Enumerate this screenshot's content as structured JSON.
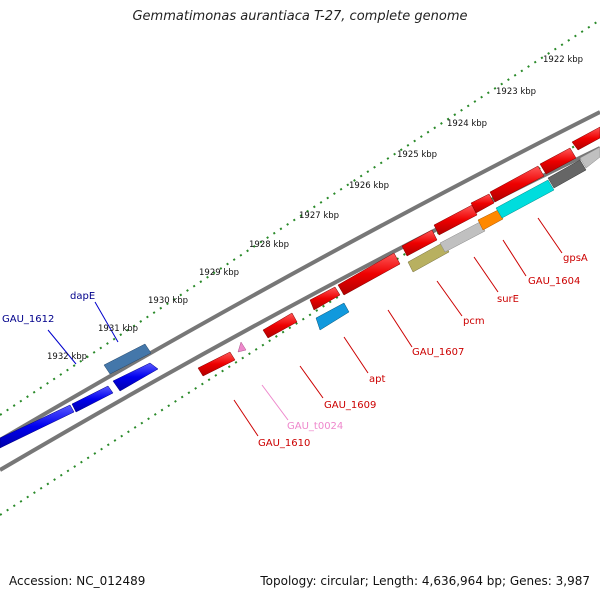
{
  "title": "Gemmatimonas aurantiaca T-27, complete genome",
  "footer": {
    "accession": "Accession: NC_012489",
    "summary": "Topology: circular; Length: 4,636,964 bp; Genes: 3,987"
  },
  "scale_labels": [
    "1922 kbp",
    "1923 kbp",
    "1924 kbp",
    "1925 kbp",
    "1926 kbp",
    "1927 kbp",
    "1928 kbp",
    "1929 kbp",
    "1930 kbp",
    "1931 kbp",
    "1932 kbp"
  ],
  "colors": {
    "forward_strand": "#0000ee",
    "forward_label": "#00008b",
    "reverse_strand": "#ee0000",
    "reverse_label": "#cc0000",
    "trna": "#ee88cc",
    "backbone": "#7a7a7a",
    "tick": "#2a8a2a"
  },
  "forward_labels": [
    "GAU_1612",
    "dapE"
  ],
  "reverse_labels": [
    "gpsA",
    "GAU_1604",
    "surE",
    "pcm",
    "GAU_1607",
    "apt",
    "GAU_1609",
    "GAU_t0024",
    "GAU_1610"
  ]
}
